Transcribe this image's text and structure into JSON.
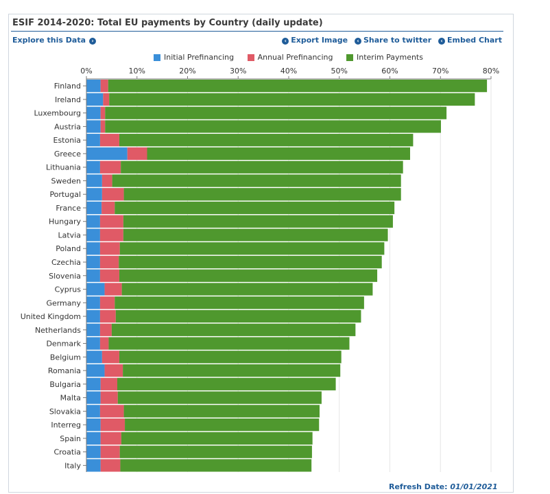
{
  "header": {
    "title": "ESIF 2014-2020: Total EU payments by Country (daily update)",
    "explore_label": "Explore this Data",
    "actions": [
      "Export Image",
      "Share to twitter",
      "Embed Chart"
    ]
  },
  "footer": {
    "refresh_label": "Refresh Date:",
    "refresh_date": "01/01/2021"
  },
  "colors": {
    "initial": "#3a8fd9",
    "annual": "#e05a66",
    "interim": "#4f982e",
    "accent": "#1f5c99"
  },
  "chart_data": {
    "type": "bar",
    "orientation": "horizontal",
    "stacked": true,
    "title": "ESIF 2014-2020: Total EU payments by Country (daily update)",
    "xlim": [
      0,
      80
    ],
    "x_ticks": [
      "0%",
      "10%",
      "20%",
      "30%",
      "40%",
      "50%",
      "60%",
      "70%",
      "80%"
    ],
    "legend_position": "top",
    "grid": true,
    "categories": [
      "Finland",
      "Ireland",
      "Luxembourg",
      "Austria",
      "Estonia",
      "Greece",
      "Lithuania",
      "Sweden",
      "Portugal",
      "France",
      "Hungary",
      "Latvia",
      "Poland",
      "Czechia",
      "Slovenia",
      "Cyprus",
      "Germany",
      "United Kingdom",
      "Netherlands",
      "Denmark",
      "Belgium",
      "Romania",
      "Bulgaria",
      "Malta",
      "Slovakia",
      "Interreg",
      "Spain",
      "Croatia",
      "Italy"
    ],
    "series": [
      {
        "name": "Initial Prefinancing",
        "values": [
          2.8,
          3.3,
          2.8,
          2.8,
          2.7,
          8.1,
          2.7,
          3.1,
          3.1,
          3.0,
          2.7,
          2.7,
          2.7,
          2.7,
          2.7,
          3.6,
          2.7,
          2.7,
          2.7,
          2.7,
          3.1,
          3.6,
          2.8,
          2.8,
          2.7,
          2.8,
          2.8,
          2.8,
          2.8
        ]
      },
      {
        "name": "Annual Prefinancing",
        "values": [
          1.5,
          1.2,
          0.9,
          0.9,
          3.8,
          3.9,
          4.1,
          2.0,
          4.3,
          2.6,
          4.6,
          4.6,
          3.9,
          3.7,
          3.8,
          3.4,
          2.9,
          3.1,
          2.3,
          1.7,
          3.4,
          3.6,
          3.3,
          3.4,
          4.7,
          4.8,
          4.1,
          3.8,
          3.9
        ]
      },
      {
        "name": "Interim Payments",
        "values": [
          74.9,
          72.3,
          67.5,
          66.4,
          58.1,
          52.0,
          55.8,
          57.1,
          54.8,
          55.3,
          53.3,
          52.3,
          52.3,
          52.0,
          51.0,
          49.6,
          49.3,
          48.5,
          48.2,
          47.6,
          43.9,
          43.0,
          43.2,
          40.3,
          38.7,
          38.4,
          37.8,
          38.0,
          37.8
        ]
      }
    ]
  }
}
